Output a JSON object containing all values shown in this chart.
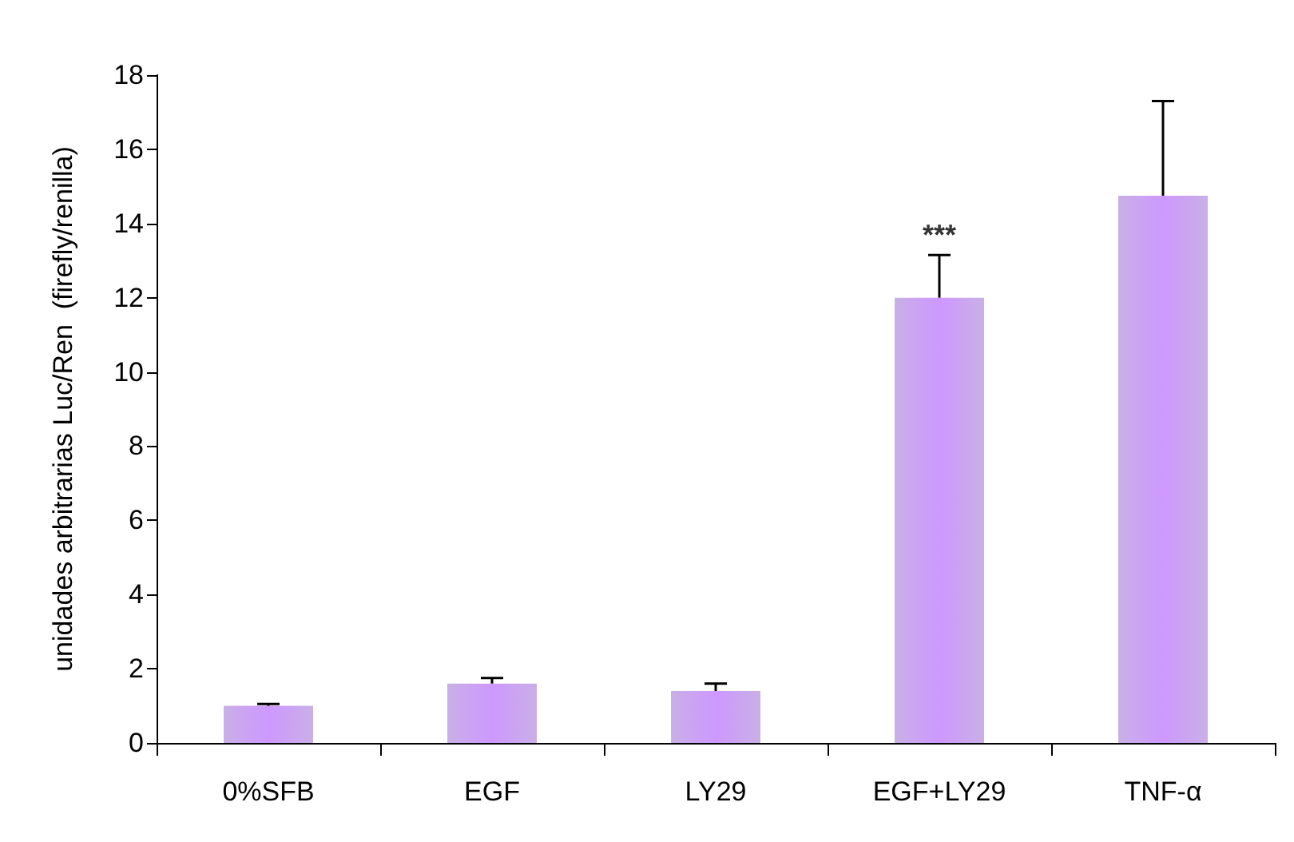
{
  "chart_data": {
    "type": "bar",
    "ylabel": "unidades arbitrarias Luc/Ren  (firefly/renilla)",
    "categories": [
      "0%SFB",
      "EGF",
      "LY29",
      "EGF+LY29",
      "TNF-α"
    ],
    "values": [
      1.0,
      1.6,
      1.4,
      12.0,
      14.75
    ],
    "errors": [
      [
        1.0,
        1.05
      ],
      [
        1.6,
        1.75
      ],
      [
        1.4,
        1.6
      ],
      [
        12.0,
        13.15
      ],
      [
        14.75,
        17.3
      ]
    ],
    "color": "#a57ad6",
    "ylim": [
      0,
      18
    ],
    "yticks": [
      0,
      2,
      4,
      6,
      8,
      10,
      12,
      14,
      16,
      18
    ],
    "grid": false,
    "annotations": [
      {
        "text": "***",
        "x": "EGF+LY29",
        "y": 13.3
      }
    ]
  }
}
